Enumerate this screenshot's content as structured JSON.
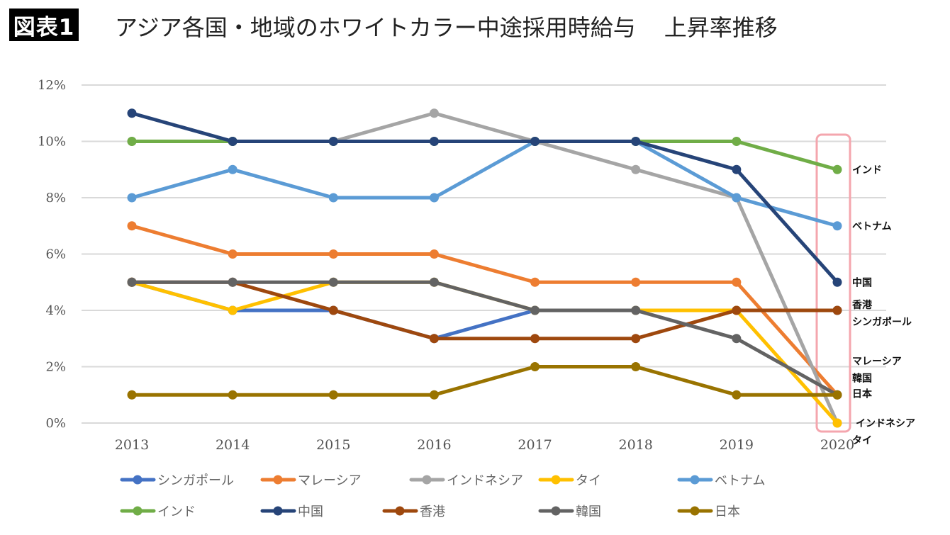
{
  "header": {
    "badge": "図表1",
    "title": "アジア各国・地域のホワイトカラー中途採用時給与",
    "subtitle": "上昇率推移"
  },
  "highlight_color": "#f4a6ae",
  "chart_data": {
    "type": "line",
    "title": "アジア各国・地域のホワイトカラー中途採用時給与 上昇率推移",
    "xlabel": "",
    "ylabel": "",
    "x": [
      "2013",
      "2014",
      "2015",
      "2016",
      "2017",
      "2018",
      "2019",
      "2020"
    ],
    "ylim": [
      0,
      12
    ],
    "yticks": [
      0,
      2,
      4,
      6,
      8,
      10,
      12
    ],
    "ytick_labels": [
      "0%",
      "2%",
      "4%",
      "6%",
      "8%",
      "10%",
      "12%"
    ],
    "grid": true,
    "legend_position": "bottom",
    "series": [
      {
        "name": "シンガポール",
        "color": "#4472c4",
        "values": [
          5,
          4,
          4,
          3,
          4,
          4,
          4,
          4
        ]
      },
      {
        "name": "マレーシア",
        "color": "#ed7d31",
        "values": [
          7,
          6,
          6,
          6,
          5,
          5,
          5,
          1
        ]
      },
      {
        "name": "インドネシア",
        "color": "#a5a5a5",
        "values": [
          10,
          10,
          10,
          11,
          10,
          9,
          8,
          0
        ]
      },
      {
        "name": "タイ",
        "color": "#ffc000",
        "values": [
          5,
          4,
          5,
          5,
          4,
          4,
          4,
          0
        ]
      },
      {
        "name": "ベトナム",
        "color": "#5b9bd5",
        "values": [
          8,
          9,
          8,
          8,
          10,
          10,
          8,
          7
        ]
      },
      {
        "name": "インド",
        "color": "#70ad47",
        "values": [
          10,
          10,
          10,
          10,
          10,
          10,
          10,
          9
        ]
      },
      {
        "name": "中国",
        "color": "#264478",
        "values": [
          11,
          10,
          10,
          10,
          10,
          10,
          9,
          5
        ]
      },
      {
        "name": "香港",
        "color": "#9e480e",
        "values": [
          5,
          5,
          4,
          3,
          3,
          3,
          4,
          4
        ]
      },
      {
        "name": "韓国",
        "color": "#636363",
        "values": [
          5,
          5,
          5,
          5,
          4,
          4,
          3,
          1
        ]
      },
      {
        "name": "日本",
        "color": "#997300",
        "values": [
          1,
          1,
          1,
          1,
          2,
          2,
          1,
          1
        ]
      }
    ],
    "annotations": [
      {
        "text": "インド",
        "at": 9
      },
      {
        "text": "ベトナム",
        "at": 7
      },
      {
        "text": "中国",
        "at": 5
      },
      {
        "text": "香港",
        "at": 4.2
      },
      {
        "text": "シンガポール",
        "at": 3.6
      },
      {
        "text": "マレーシア",
        "at": 2.2
      },
      {
        "text": "韓国",
        "at": 1.6
      },
      {
        "text": "日本",
        "at": 1.05
      },
      {
        "text": "インドネシア",
        "at": 0
      },
      {
        "text": "タイ",
        "at": -0.6
      }
    ],
    "highlight_year": "2020"
  }
}
